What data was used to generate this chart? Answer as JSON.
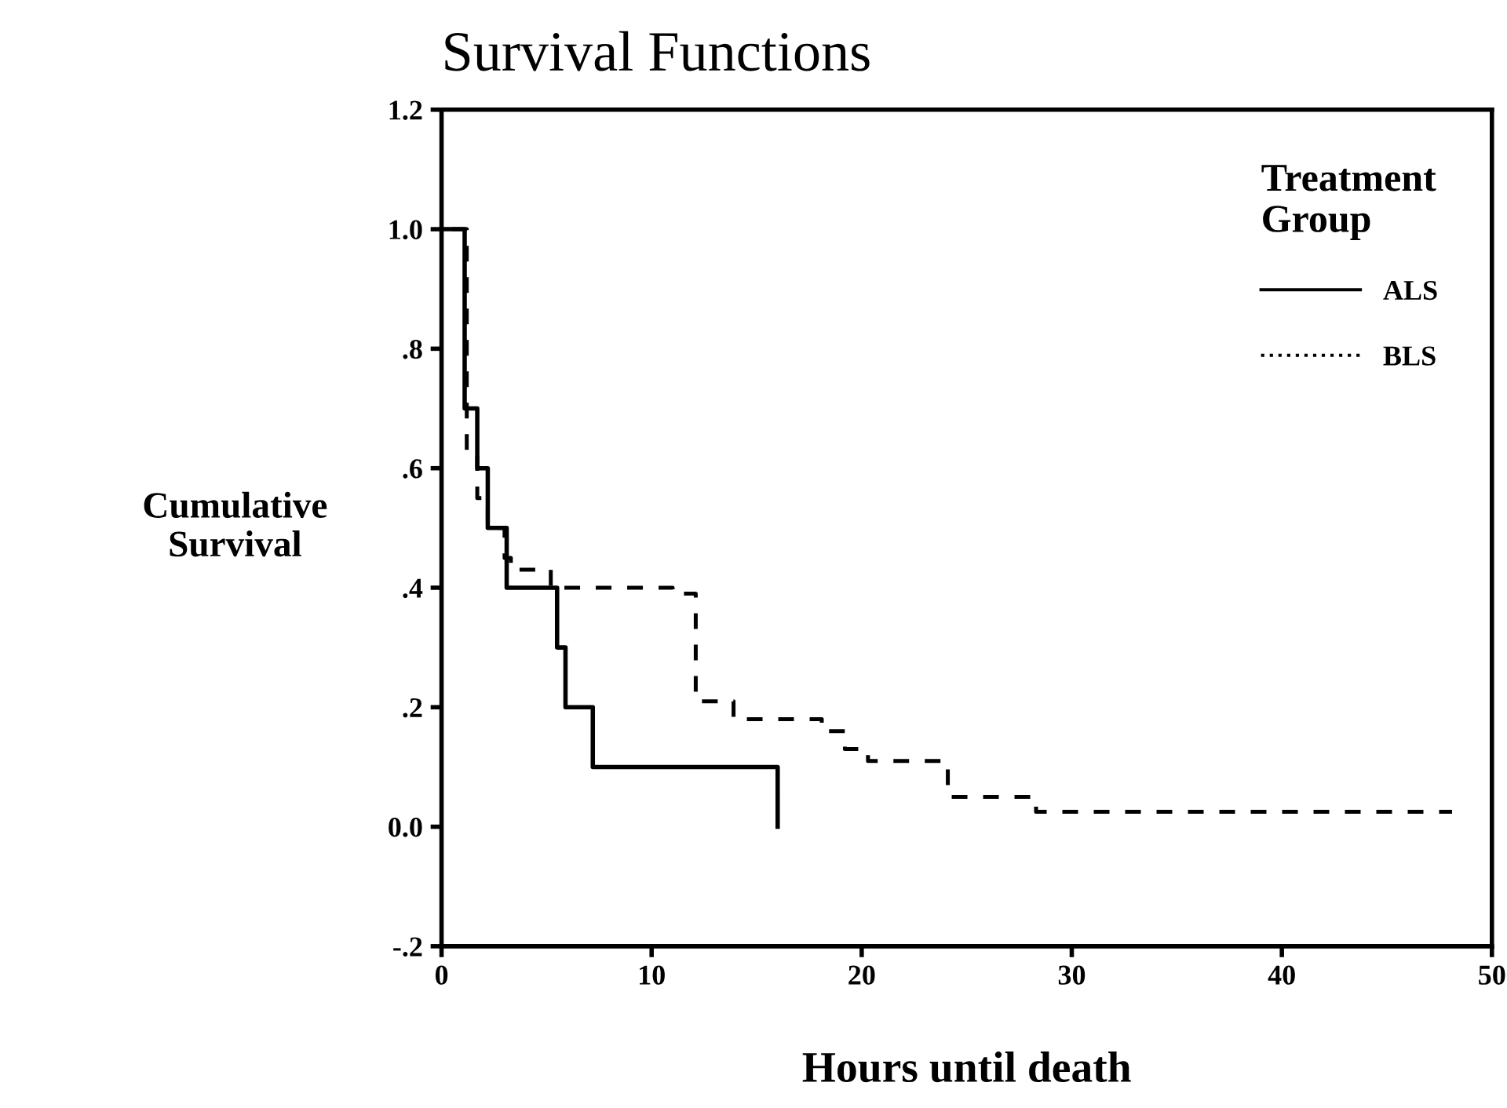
{
  "chart_data": {
    "type": "step",
    "title": "Survival Functions",
    "xlabel": "Hours until death",
    "ylabel": "Cumulative\nSurvival",
    "legend_title": "Treatment\nGroup",
    "legend": "top right",
    "grid": false,
    "xlim": [
      0,
      50
    ],
    "xticks": [
      0,
      10,
      20,
      30,
      40,
      50
    ],
    "ylim": [
      -0.2,
      1.2
    ],
    "yticks": [
      {
        "value": -0.2,
        "label": "-.2"
      },
      {
        "value": 0.0,
        "label": "0.0"
      },
      {
        "value": 0.2,
        "label": ".2"
      },
      {
        "value": 0.4,
        "label": ".4"
      },
      {
        "value": 0.6,
        "label": ".6"
      },
      {
        "value": 0.8,
        "label": ".8"
      },
      {
        "value": 1.0,
        "label": "1.0"
      },
      {
        "value": 1.2,
        "label": "1.2"
      }
    ],
    "series": [
      {
        "name": "ALS",
        "color": "#000000",
        "line_style": "solid",
        "x": [
          0,
          1.1,
          1.7,
          2.2,
          3.1,
          5.5,
          5.9,
          7.2,
          16.0,
          16.0
        ],
        "values": [
          1.0,
          0.7,
          0.6,
          0.5,
          0.4,
          0.3,
          0.2,
          0.1,
          0.1,
          0.0
        ]
      },
      {
        "name": "BLS",
        "color": "#000000",
        "line_style": "dashed",
        "x": [
          0.5,
          1.2,
          1.7,
          2.2,
          3.0,
          3.3,
          5.2,
          11.0,
          12.1,
          13.9,
          18.1,
          19.2,
          20.3,
          24.1,
          28.3,
          48.1
        ],
        "values": [
          1.0,
          0.62,
          0.55,
          0.5,
          0.45,
          0.43,
          0.4,
          0.39,
          0.21,
          0.18,
          0.16,
          0.13,
          0.11,
          0.05,
          0.025,
          0.025
        ]
      }
    ]
  }
}
